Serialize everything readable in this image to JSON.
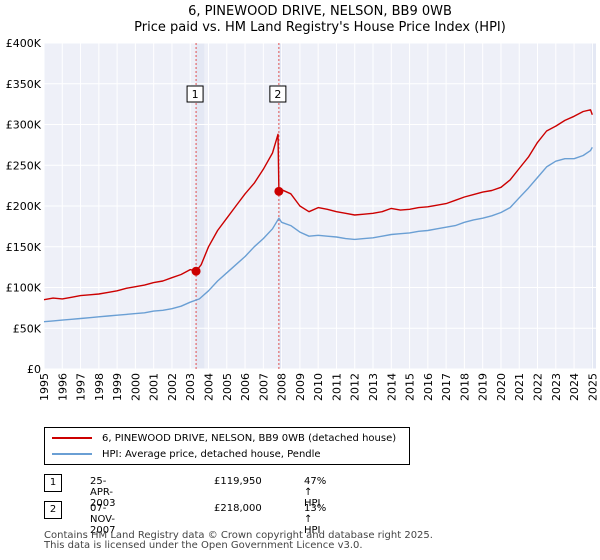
{
  "chart_data": {
    "type": "line",
    "title": "6, PINEWOOD DRIVE, NELSON, BB9 0WB",
    "subtitle": "Price paid vs. HM Land Registry's House Price Index (HPI)",
    "xlim": [
      1995.0,
      2025.2
    ],
    "ylim": [
      0,
      400000
    ],
    "x_ticks": [
      "1995",
      "1996",
      "1997",
      "1998",
      "1999",
      "2000",
      "2001",
      "2002",
      "2003",
      "2004",
      "2005",
      "2006",
      "2007",
      "2008",
      "2009",
      "2010",
      "2011",
      "2012",
      "2013",
      "2014",
      "2015",
      "2016",
      "2017",
      "2018",
      "2019",
      "2020",
      "2021",
      "2022",
      "2023",
      "2024",
      "2025"
    ],
    "y_ticks": [
      {
        "value": 0,
        "label": "£0"
      },
      {
        "value": 50000,
        "label": "£50K"
      },
      {
        "value": 100000,
        "label": "£100K"
      },
      {
        "value": 150000,
        "label": "£150K"
      },
      {
        "value": 200000,
        "label": "£200K"
      },
      {
        "value": 250000,
        "label": "£250K"
      },
      {
        "value": 300000,
        "label": "£300K"
      },
      {
        "value": 350000,
        "label": "£350K"
      },
      {
        "value": 400000,
        "label": "£400K"
      }
    ],
    "grid": true,
    "series": [
      {
        "name": "6, PINEWOOD DRIVE, NELSON, BB9 0WB (detached house)",
        "color": "#cc0000",
        "x": [
          1995.0,
          1995.5,
          1996.0,
          1996.5,
          1997.0,
          1997.5,
          1998.0,
          1998.5,
          1999.0,
          1999.5,
          2000.0,
          2000.5,
          2001.0,
          2001.5,
          2002.0,
          2002.5,
          2003.0,
          2003.32,
          2003.6,
          2004.0,
          2004.5,
          2005.0,
          2005.5,
          2006.0,
          2006.5,
          2007.0,
          2007.5,
          2007.8,
          2007.85,
          2008.0,
          2008.5,
          2009.0,
          2009.5,
          2010.0,
          2010.5,
          2011.0,
          2011.5,
          2012.0,
          2012.5,
          2013.0,
          2013.5,
          2014.0,
          2014.5,
          2015.0,
          2015.5,
          2016.0,
          2016.5,
          2017.0,
          2017.5,
          2018.0,
          2018.5,
          2019.0,
          2019.5,
          2020.0,
          2020.5,
          2021.0,
          2021.5,
          2022.0,
          2022.5,
          2023.0,
          2023.5,
          2024.0,
          2024.5,
          2024.9,
          2025.0
        ],
        "values": [
          85000,
          87000,
          86000,
          88000,
          90000,
          91000,
          92000,
          94000,
          96000,
          99000,
          101000,
          103000,
          106000,
          108000,
          112000,
          116000,
          122000,
          119950,
          128000,
          150000,
          170000,
          185000,
          200000,
          215000,
          228000,
          245000,
          265000,
          288000,
          218000,
          220000,
          215000,
          200000,
          193000,
          198000,
          196000,
          193000,
          191000,
          189000,
          190000,
          191000,
          193000,
          197000,
          195000,
          196000,
          198000,
          199000,
          201000,
          203000,
          207000,
          211000,
          214000,
          217000,
          219000,
          223000,
          232000,
          246000,
          260000,
          278000,
          292000,
          298000,
          305000,
          310000,
          316000,
          318000,
          312000
        ]
      },
      {
        "name": "HPI: Average price, detached house, Pendle",
        "color": "#6a9fd4",
        "x": [
          1995.0,
          1995.5,
          1996.0,
          1996.5,
          1997.0,
          1997.5,
          1998.0,
          1998.5,
          1999.0,
          1999.5,
          2000.0,
          2000.5,
          2001.0,
          2001.5,
          2002.0,
          2002.5,
          2003.0,
          2003.5,
          2004.0,
          2004.5,
          2005.0,
          2005.5,
          2006.0,
          2006.5,
          2007.0,
          2007.5,
          2007.85,
          2008.0,
          2008.5,
          2009.0,
          2009.5,
          2010.0,
          2010.5,
          2011.0,
          2011.5,
          2012.0,
          2012.5,
          2013.0,
          2013.5,
          2014.0,
          2014.5,
          2015.0,
          2015.5,
          2016.0,
          2016.5,
          2017.0,
          2017.5,
          2018.0,
          2018.5,
          2019.0,
          2019.5,
          2020.0,
          2020.5,
          2021.0,
          2021.5,
          2022.0,
          2022.5,
          2023.0,
          2023.5,
          2024.0,
          2024.5,
          2024.9,
          2025.0
        ],
        "values": [
          58000,
          59000,
          60000,
          61000,
          62000,
          63000,
          64000,
          65000,
          66000,
          67000,
          68000,
          69000,
          71000,
          72000,
          74000,
          77000,
          82000,
          86000,
          96000,
          108000,
          118000,
          128000,
          138000,
          150000,
          160000,
          172000,
          185000,
          180000,
          176000,
          168000,
          163000,
          164000,
          163000,
          162000,
          160000,
          159000,
          160000,
          161000,
          163000,
          165000,
          166000,
          167000,
          169000,
          170000,
          172000,
          174000,
          176000,
          180000,
          183000,
          185000,
          188000,
          192000,
          198000,
          210000,
          222000,
          235000,
          248000,
          255000,
          258000,
          258000,
          262000,
          268000,
          272000
        ]
      }
    ],
    "annotations": [
      {
        "label": "1",
        "x": 2003.32,
        "value": 119950
      },
      {
        "label": "2",
        "x": 2007.85,
        "value": 218000
      }
    ]
  },
  "legend": {
    "property": "6, PINEWOOD DRIVE, NELSON, BB9 0WB (detached house)",
    "hpi": "HPI: Average price, detached house, Pendle"
  },
  "sales": [
    {
      "num": "1",
      "date": "25-APR-2003",
      "price": "£119,950",
      "hpi": "47% ↑ HPI"
    },
    {
      "num": "2",
      "date": "07-NOV-2007",
      "price": "£218,000",
      "hpi": "13% ↑ HPI"
    }
  ],
  "footer": {
    "line1": "Contains HM Land Registry data © Crown copyright and database right 2025.",
    "line2": "This data is licensed under the Open Government Licence v3.0."
  },
  "colors": {
    "property": "#cc0000",
    "hpi": "#6a9fd4",
    "background": "#eef0f8",
    "grid": "#ffffff",
    "marker_line": "#e05050",
    "shade": "#e4e8f4"
  }
}
